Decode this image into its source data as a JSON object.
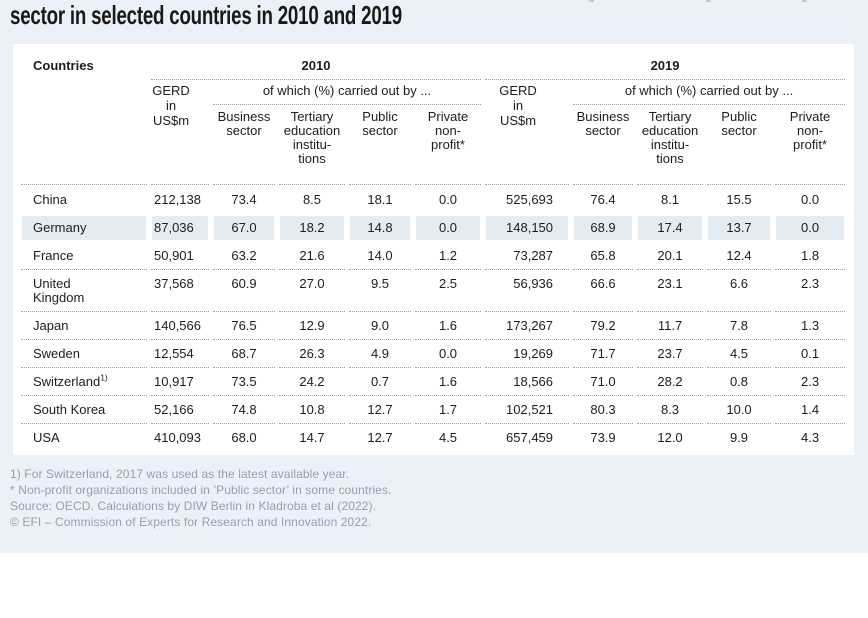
{
  "page": {
    "title": "sector in selected countries in 2010 and 2019"
  },
  "table": {
    "countries_header": "Countries",
    "years": [
      "2010",
      "2019"
    ],
    "gerd_label_lines": [
      "GERD",
      "in",
      "US$m"
    ],
    "of_which_label": "of which (%) carried out by ...",
    "sector_columns": [
      [
        "Business",
        "sector"
      ],
      [
        "Tertiary",
        "education",
        "institu-",
        "tions"
      ],
      [
        "Public",
        "sector"
      ],
      [
        "Private",
        "non-",
        "profit*"
      ]
    ],
    "rows": [
      {
        "country": "China",
        "sup": "",
        "highlight": false,
        "separator": false,
        "v2010": [
          "212,138",
          "73.4",
          "8.5",
          "18.1",
          "0.0"
        ],
        "v2019": [
          "525,693",
          "76.4",
          "8.1",
          "15.5",
          "0.0"
        ]
      },
      {
        "country": "Germany",
        "sup": "",
        "highlight": true,
        "separator": false,
        "v2010": [
          "87,036",
          "67.0",
          "18.2",
          "14.8",
          "0.0"
        ],
        "v2019": [
          "148,150",
          "68.9",
          "17.4",
          "13.7",
          "0.0"
        ]
      },
      {
        "country": "France",
        "sup": "",
        "highlight": false,
        "separator": true,
        "v2010": [
          "50,901",
          "63.2",
          "21.6",
          "14.0",
          "1.2"
        ],
        "v2019": [
          "73,287",
          "65.8",
          "20.1",
          "12.4",
          "1.8"
        ]
      },
      {
        "country": "United\nKingdom",
        "sup": "",
        "highlight": false,
        "separator": true,
        "v2010": [
          "37,568",
          "60.9",
          "27.0",
          "9.5",
          "2.5"
        ],
        "v2019": [
          "56,936",
          "66.6",
          "23.1",
          "6.6",
          "2.3"
        ]
      },
      {
        "country": "Japan",
        "sup": "",
        "highlight": false,
        "separator": true,
        "v2010": [
          "140,566",
          "76.5",
          "12.9",
          "9.0",
          "1.6"
        ],
        "v2019": [
          "173,267",
          "79.2",
          "11.7",
          "7.8",
          "1.3"
        ]
      },
      {
        "country": "Sweden",
        "sup": "",
        "highlight": false,
        "separator": true,
        "v2010": [
          "12,554",
          "68.7",
          "26.3",
          "4.9",
          "0.0"
        ],
        "v2019": [
          "19,269",
          "71.7",
          "23.7",
          "4.5",
          "0.1"
        ]
      },
      {
        "country": "Switzerland",
        "sup": "1)",
        "highlight": false,
        "separator": true,
        "v2010": [
          "10,917",
          "73.5",
          "24.2",
          "0.7",
          "1.6"
        ],
        "v2019": [
          "18,566",
          "71.0",
          "28.2",
          "0.8",
          "2.3"
        ]
      },
      {
        "country": "South Korea",
        "sup": "",
        "highlight": false,
        "separator": true,
        "v2010": [
          "52,166",
          "74.8",
          "10.8",
          "12.7",
          "1.7"
        ],
        "v2019": [
          "102,521",
          "80.3",
          "8.3",
          "10.0",
          "1.4"
        ]
      },
      {
        "country": "USA",
        "sup": "",
        "highlight": false,
        "separator": false,
        "v2010": [
          "410,093",
          "68.0",
          "14.7",
          "12.7",
          "4.5"
        ],
        "v2019": [
          "657,459",
          "73.9",
          "12.0",
          "9.9",
          "4.3"
        ]
      }
    ]
  },
  "footnotes": [
    "1) For Switzerland, 2017 was used as the latest available year.",
    "* Non-profit organizations included in ’Public sector’ in some countries.",
    "Source: OECD. Calculations by DIW Berlin in Kladroba et al (2022).",
    "© EFI – Commission of Experts for Research and Innovation 2022."
  ],
  "colors": {
    "panel_bg": "#eaf1f8",
    "card_bg": "#ffffff",
    "row_highlight": "#e4ecf3",
    "dotted_line": "#97a2aa",
    "text": "#1d1d1b",
    "footnote_text": "#93a1ad"
  },
  "chart_data": {
    "type": "table",
    "title": "sector in selected countries in 2010 and 2019",
    "years": [
      "2010",
      "2019"
    ],
    "columns_per_year": [
      "GERD in US$m",
      "Business sector (%)",
      "Tertiary education institutions (%)",
      "Public sector (%)",
      "Private non-profit (%)"
    ],
    "rows": [
      {
        "country": "China",
        "2010": [
          212138,
          73.4,
          8.5,
          18.1,
          0.0
        ],
        "2019": [
          525693,
          76.4,
          8.1,
          15.5,
          0.0
        ]
      },
      {
        "country": "Germany",
        "2010": [
          87036,
          67.0,
          18.2,
          14.8,
          0.0
        ],
        "2019": [
          148150,
          68.9,
          17.4,
          13.7,
          0.0
        ]
      },
      {
        "country": "France",
        "2010": [
          50901,
          63.2,
          21.6,
          14.0,
          1.2
        ],
        "2019": [
          73287,
          65.8,
          20.1,
          12.4,
          1.8
        ]
      },
      {
        "country": "United Kingdom",
        "2010": [
          37568,
          60.9,
          27.0,
          9.5,
          2.5
        ],
        "2019": [
          56936,
          66.6,
          23.1,
          6.6,
          2.3
        ]
      },
      {
        "country": "Japan",
        "2010": [
          140566,
          76.5,
          12.9,
          9.0,
          1.6
        ],
        "2019": [
          173267,
          79.2,
          11.7,
          7.8,
          1.3
        ]
      },
      {
        "country": "Sweden",
        "2010": [
          12554,
          68.7,
          26.3,
          4.9,
          0.0
        ],
        "2019": [
          19269,
          71.7,
          23.7,
          4.5,
          0.1
        ]
      },
      {
        "country": "Switzerland",
        "2010": [
          10917,
          73.5,
          24.2,
          0.7,
          1.6
        ],
        "2019": [
          18566,
          71.0,
          28.2,
          0.8,
          2.3
        ]
      },
      {
        "country": "South Korea",
        "2010": [
          52166,
          74.8,
          10.8,
          12.7,
          1.7
        ],
        "2019": [
          102521,
          80.3,
          8.3,
          10.0,
          1.4
        ]
      },
      {
        "country": "USA",
        "2010": [
          410093,
          68.0,
          14.7,
          12.7,
          4.5
        ],
        "2019": [
          657459,
          73.9,
          12.0,
          9.9,
          4.3
        ]
      }
    ],
    "notes": "Switzerland: 2017 used as latest available year; non-profit organizations included in Public sector in some countries"
  }
}
